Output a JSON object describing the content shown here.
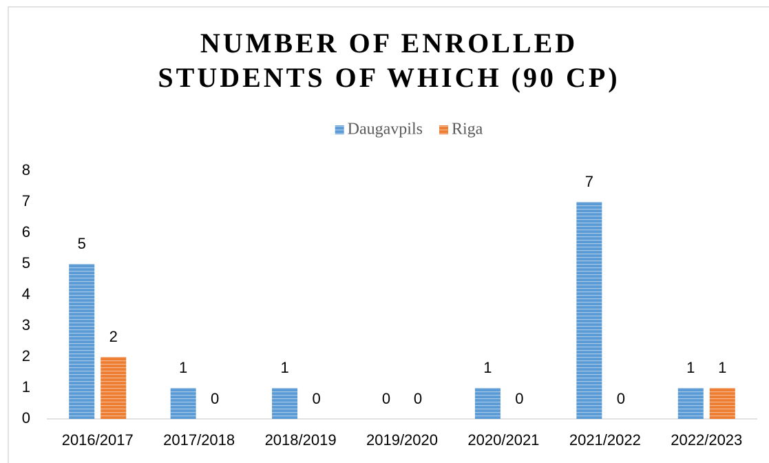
{
  "chart_data": {
    "type": "bar",
    "title": "NUMBER OF ENROLLED STUDENTS OF WHICH (90 CP)",
    "categories": [
      "2016/2017",
      "2017/2018",
      "2018/2019",
      "2019/2020",
      "2020/2021",
      "2021/2022",
      "2022/2023"
    ],
    "series": [
      {
        "name": "Daugavpils",
        "color": "#5b9bd5",
        "values": [
          5,
          1,
          1,
          0,
          1,
          7,
          1
        ]
      },
      {
        "name": "Riga",
        "color": "#ed7d31",
        "values": [
          2,
          0,
          0,
          0,
          0,
          0,
          1
        ]
      }
    ],
    "ylim": [
      0,
      8
    ],
    "yticks": [
      0,
      1,
      2,
      3,
      4,
      5,
      6,
      7,
      8
    ],
    "legend": "top"
  }
}
